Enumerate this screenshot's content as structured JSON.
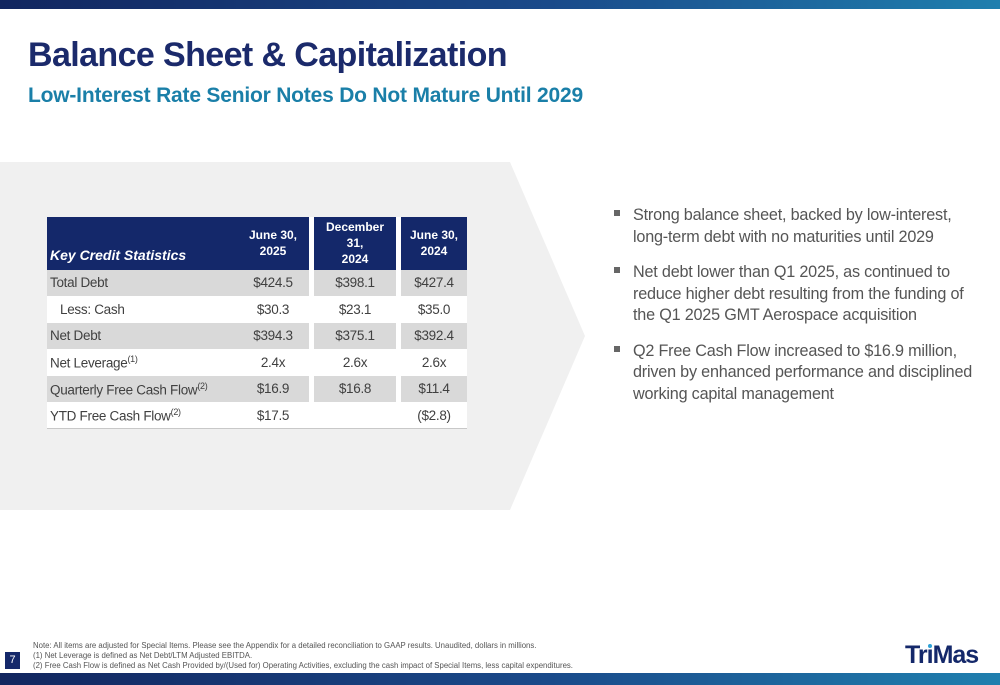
{
  "header": {
    "title": "Balance Sheet & Capitalization",
    "subtitle": "Low-Interest Rate Senior Notes Do Not Mature Until 2029"
  },
  "table": {
    "header": {
      "label": "Key Credit Statistics",
      "col1_line1": "June 30,",
      "col1_line2": "2025",
      "col2_line1": "December 31,",
      "col2_line2": "2024",
      "col3": "June 30, 2024"
    },
    "rows": [
      {
        "label": "Total Debt",
        "sup": "",
        "values": [
          "$424.5",
          "$398.1",
          "$427.4"
        ]
      },
      {
        "label": "Less: Cash",
        "sup": "",
        "values": [
          "$30.3",
          "$23.1",
          "$35.0"
        ]
      },
      {
        "label": "Net Debt",
        "sup": "",
        "values": [
          "$394.3",
          "$375.1",
          "$392.4"
        ]
      },
      {
        "label": "Net Leverage",
        "sup": "(1)",
        "values": [
          "2.4x",
          "2.6x",
          "2.6x"
        ]
      },
      {
        "label": "Quarterly Free Cash Flow",
        "sup": "(2)",
        "values": [
          "$16.9",
          "$16.8",
          "$11.4"
        ]
      },
      {
        "label": "YTD Free Cash Flow",
        "sup": "(2)",
        "values": [
          "$17.5",
          "",
          "($2.8)"
        ]
      }
    ]
  },
  "bullets": [
    "Strong balance sheet, backed by low-interest, long-term debt with no maturities until 2029",
    "Net debt lower than Q1 2025, as continued to reduce higher debt resulting from the funding of the Q1 2025 GMT Aerospace acquisition",
    "Q2 Free Cash Flow increased to $16.9 million, driven by enhanced performance and disciplined working capital management"
  ],
  "footer": {
    "page_number": "7",
    "note": "Note: All items are adjusted for Special Items. Please see the Appendix for a detailed reconciliation to GAAP results. Unaudited, dollars in millions.",
    "footnote_1": "(1)   Net Leverage is defined as Net Debt/LTM Adjusted EBITDA.",
    "footnote_2": "(2)   Free Cash Flow is defined as Net Cash Provided by/(Used for) Operating Activities, excluding the cash impact of Special Items, less capital expenditures.",
    "logo_text": "TriMas",
    "logo_part1": "Tr",
    "logo_part2": "ı",
    "logo_part3": "Mas"
  },
  "colors": {
    "navy": "#14286a",
    "teal": "#1a7fa8",
    "shade": "#d9d9d9",
    "chevron_bg": "#f0f0f0",
    "logo_dot": "#2ea1d6"
  }
}
